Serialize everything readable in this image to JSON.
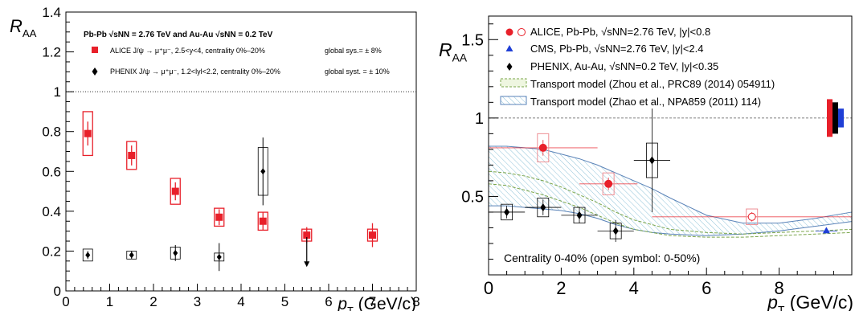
{
  "chart_data": [
    {
      "type": "scatter",
      "ylabel_main": "R",
      "ylabel_sub": "AA",
      "xlabel_main": "p",
      "xlabel_sub": "T",
      "xlabel_unit": " (GeV/c)",
      "xlim": [
        0,
        8
      ],
      "ylim": [
        0,
        1.4
      ],
      "x_ticks": [
        0,
        1,
        2,
        3,
        4,
        5,
        6,
        7,
        8
      ],
      "y_ticks": [
        0,
        0.2,
        0.4,
        0.6,
        0.8,
        1,
        1.2,
        1.4
      ],
      "x_tick_labels": [
        "0",
        "1",
        "2",
        "3",
        "4",
        "5",
        "6",
        "7",
        "8"
      ],
      "y_tick_labels": [
        "0",
        "0.2",
        "0.4",
        "0.6",
        "0.8",
        "1",
        "1.2",
        "1.4"
      ],
      "reference_line": 1,
      "header": "Pb-Pb √sNN = 2.76 TeV and Au-Au √sNN = 0.2 TeV",
      "legend": [
        {
          "label": "ALICE J/ψ → μ⁺μ⁻, 2.5<y<4, centrality 0%–20%",
          "note": "global sys.= ± 8%",
          "color": "#e8202a",
          "marker": "square"
        },
        {
          "label": "PHENIX J/ψ → μ⁺μ⁻, 1.2<lyl<2.2, centrality 0%–20%",
          "note": "global syst. = ± 10%",
          "color": "#000000",
          "marker": "diamond"
        }
      ],
      "series": [
        {
          "name": "ALICE",
          "color": "#e8202a",
          "points": [
            {
              "x": 0.5,
              "y": 0.79,
              "stat": 0.06,
              "sys": 0.11
            },
            {
              "x": 1.5,
              "y": 0.68,
              "stat": 0.05,
              "sys": 0.07
            },
            {
              "x": 2.5,
              "y": 0.5,
              "stat": 0.045,
              "sys": 0.065
            },
            {
              "x": 3.5,
              "y": 0.37,
              "stat": 0.04,
              "sys": 0.045
            },
            {
              "x": 4.5,
              "y": 0.35,
              "stat": 0.045,
              "sys": 0.045
            },
            {
              "x": 5.5,
              "y": 0.28,
              "stat": 0.04,
              "sys": 0.03
            },
            {
              "x": 7.0,
              "y": 0.28,
              "stat": 0.06,
              "sys": 0.03
            }
          ]
        },
        {
          "name": "PHENIX",
          "color": "#000000",
          "points": [
            {
              "x": 0.5,
              "y": 0.18,
              "stat": 0.02,
              "sys": 0.03
            },
            {
              "x": 1.5,
              "y": 0.18,
              "stat": 0.02,
              "sys": 0.02
            },
            {
              "x": 2.5,
              "y": 0.19,
              "stat": 0.04,
              "sys": 0.03
            },
            {
              "x": 3.5,
              "y": 0.17,
              "stat": 0.07,
              "sys": 0.02
            },
            {
              "x": 4.5,
              "y": 0.6,
              "stat": 0.17,
              "sys": 0.12
            }
          ],
          "upper_limit": {
            "x": 5.5,
            "y_from": 0.27,
            "y_to": 0.12
          }
        }
      ]
    },
    {
      "type": "scatter",
      "ylabel_main": "R",
      "ylabel_sub": "AA",
      "xlabel_main": "p",
      "xlabel_sub": "T",
      "xlabel_unit": " (GeV/c)",
      "xlim": [
        0,
        10
      ],
      "ylim": [
        0,
        1.65
      ],
      "x_ticks": [
        0,
        2,
        4,
        6,
        8
      ],
      "y_ticks": [
        0.5,
        1,
        1.5
      ],
      "x_tick_labels": [
        "0",
        "2",
        "4",
        "6",
        "8"
      ],
      "y_tick_labels": [
        "0.5",
        "1",
        "1.5"
      ],
      "reference_line": 1,
      "annotation": "Centrality 0-40% (open symbol: 0-50%)",
      "legend": [
        {
          "label": "ALICE, Pb-Pb, √sNN=2.76 TeV, |y|<0.8",
          "color": "#e8202a",
          "marker": "circle-pair"
        },
        {
          "label": "CMS, Pb-Pb, √sNN=2.76 TeV, |y|<2.4",
          "color": "#1f3fd6",
          "marker": "triangle"
        },
        {
          "label": "PHENIX, Au-Au, √sNN=0.2 TeV, |y|<0.35",
          "color": "#000000",
          "marker": "diamond"
        },
        {
          "label": "Transport model (Zhou et al., PRC89 (2014) 054911)",
          "color": "#7aa54a",
          "marker": "dashed-box"
        },
        {
          "label": "Transport model (Zhao et al., NPA859 (2011) 114)",
          "color": "#5a83b8",
          "marker": "hatched-box"
        }
      ],
      "series": [
        {
          "name": "ALICE",
          "color": "#e8202a",
          "points": [
            {
              "x": 1.5,
              "y": 0.81,
              "xerr": 1.5,
              "stat": 0.05,
              "sys": 0.09,
              "open": false
            },
            {
              "x": 3.3,
              "y": 0.58,
              "xerr": 0.8,
              "stat": 0.04,
              "sys": 0.07,
              "open": false
            },
            {
              "x": 7.25,
              "y": 0.37,
              "xerr": 2.75,
              "stat": 0.03,
              "sys": 0.05,
              "open": true
            }
          ]
        },
        {
          "name": "CMS",
          "color": "#1f3fd6",
          "points": [
            {
              "x": 9.3,
              "y": 0.28,
              "xerr": 0.3
            }
          ]
        },
        {
          "name": "PHENIX",
          "color": "#000000",
          "points": [
            {
              "x": 0.5,
              "y": 0.4,
              "xerr": 0.5,
              "stat": 0.04,
              "sys": 0.05
            },
            {
              "x": 1.5,
              "y": 0.43,
              "xerr": 0.5,
              "stat": 0.05,
              "sys": 0.06
            },
            {
              "x": 2.5,
              "y": 0.38,
              "xerr": 0.5,
              "stat": 0.05,
              "sys": 0.05
            },
            {
              "x": 3.5,
              "y": 0.28,
              "xerr": 0.5,
              "stat": 0.07,
              "sys": 0.05
            },
            {
              "x": 4.5,
              "y": 0.73,
              "xerr": 0.5,
              "stat": 0.33,
              "sys": 0.11
            }
          ]
        }
      ],
      "models": [
        {
          "name": "Transport model (Zhou et al., PRC89 (2014) 054911)",
          "color": "#7aa54a",
          "x": [
            0,
            0.5,
            1,
            1.5,
            2,
            2.5,
            3,
            3.5,
            4,
            5,
            6,
            7,
            8,
            9,
            10
          ],
          "upper": [
            0.66,
            0.65,
            0.63,
            0.6,
            0.56,
            0.51,
            0.46,
            0.4,
            0.35,
            0.29,
            0.27,
            0.26,
            0.27,
            0.28,
            0.29
          ],
          "lower": [
            0.58,
            0.57,
            0.54,
            0.51,
            0.47,
            0.43,
            0.38,
            0.33,
            0.29,
            0.25,
            0.24,
            0.24,
            0.25,
            0.26,
            0.27
          ]
        },
        {
          "name": "Transport model (Zhao et al., NPA859 (2011) 114)",
          "color": "#5a83b8",
          "x": [
            0,
            0.5,
            1,
            1.5,
            2,
            2.5,
            3,
            3.5,
            4,
            4.5,
            5,
            6,
            7,
            8,
            9,
            10
          ],
          "upper": [
            0.82,
            0.82,
            0.81,
            0.8,
            0.77,
            0.74,
            0.7,
            0.65,
            0.6,
            0.55,
            0.49,
            0.38,
            0.33,
            0.33,
            0.36,
            0.4
          ],
          "lower": [
            0.44,
            0.44,
            0.43,
            0.42,
            0.41,
            0.39,
            0.36,
            0.32,
            0.29,
            0.27,
            0.26,
            0.25,
            0.26,
            0.28,
            0.31,
            0.34
          ]
        }
      ],
      "global_sys": [
        {
          "name": "ALICE",
          "color": "#e8202a",
          "low": 0.88,
          "high": 1.12
        },
        {
          "name": "PHENIX",
          "color": "#000000",
          "low": 0.9,
          "high": 1.1
        },
        {
          "name": "CMS",
          "color": "#1f3fd6",
          "low": 0.94,
          "high": 1.06
        }
      ]
    }
  ]
}
